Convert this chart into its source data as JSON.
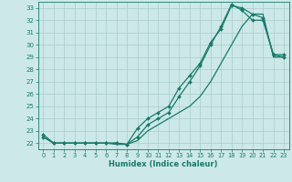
{
  "xlabel": "Humidex (Indice chaleur)",
  "bg_color": "#cce8e8",
  "grid_color": "#aacccc",
  "line_color": "#1a7a6a",
  "xlim": [
    -0.5,
    23.5
  ],
  "ylim": [
    21.5,
    33.5
  ],
  "yticks": [
    22,
    23,
    24,
    25,
    26,
    27,
    28,
    29,
    30,
    31,
    32,
    33
  ],
  "xticks": [
    0,
    1,
    2,
    3,
    4,
    5,
    6,
    7,
    8,
    9,
    10,
    11,
    12,
    13,
    14,
    15,
    16,
    17,
    18,
    19,
    20,
    21,
    22,
    23
  ],
  "series1_x": [
    0,
    1,
    2,
    3,
    4,
    5,
    6,
    7,
    8,
    9,
    10,
    11,
    12,
    13,
    14,
    15,
    16,
    17,
    18,
    19,
    20,
    21,
    22,
    23
  ],
  "series1_y": [
    22.7,
    22.0,
    22.0,
    22.0,
    22.0,
    22.0,
    22.0,
    22.0,
    21.9,
    23.2,
    24.0,
    24.5,
    25.0,
    26.5,
    27.5,
    28.5,
    30.2,
    31.3,
    33.2,
    33.0,
    32.5,
    32.2,
    29.2,
    29.0
  ],
  "series2_x": [
    0,
    1,
    2,
    3,
    4,
    5,
    6,
    7,
    8,
    9,
    10,
    11,
    12,
    13,
    14,
    15,
    16,
    17,
    18,
    19,
    20,
    21,
    22,
    23
  ],
  "series2_y": [
    22.5,
    22.0,
    22.0,
    22.0,
    22.0,
    22.0,
    22.0,
    22.0,
    21.9,
    22.5,
    23.5,
    24.0,
    24.5,
    25.8,
    27.0,
    28.3,
    30.0,
    31.5,
    33.3,
    32.8,
    32.0,
    32.0,
    29.2,
    29.2
  ],
  "series3_x": [
    0,
    1,
    2,
    3,
    4,
    5,
    6,
    7,
    8,
    9,
    10,
    11,
    12,
    13,
    14,
    15,
    16,
    17,
    18,
    19,
    20,
    21,
    22,
    23
  ],
  "series3_y": [
    22.5,
    22.0,
    22.0,
    22.0,
    22.0,
    22.0,
    22.0,
    21.9,
    21.9,
    22.2,
    23.0,
    23.5,
    24.0,
    24.5,
    25.0,
    25.8,
    27.0,
    28.5,
    30.0,
    31.5,
    32.5,
    32.5,
    29.0,
    29.0
  ]
}
